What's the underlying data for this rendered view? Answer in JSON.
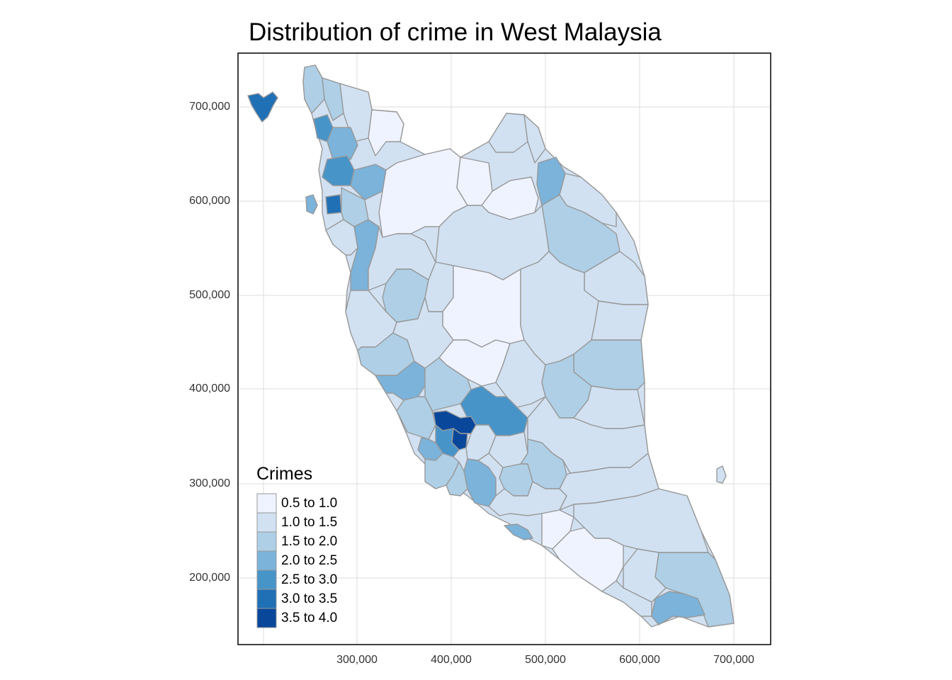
{
  "title": "Distribution of crime in West Malaysia",
  "axes": {
    "y_ticks": [
      "700,000",
      "600,000",
      "500,000",
      "400,000",
      "300,000",
      "200,000"
    ],
    "x_ticks": [
      "300,000",
      "400,000",
      "500,000",
      "600,000",
      "700,000"
    ]
  },
  "legend": {
    "title": "Crimes",
    "items": [
      {
        "label": "0.5 to 1.0",
        "color": "#eff3ff"
      },
      {
        "label": "1.0 to 1.5",
        "color": "#d1e1f2"
      },
      {
        "label": "1.5 to 2.0",
        "color": "#aecfe6"
      },
      {
        "label": "2.0 to 2.5",
        "color": "#7bb3da"
      },
      {
        "label": "2.5 to 3.0",
        "color": "#4794c9"
      },
      {
        "label": "3.0 to 3.5",
        "color": "#2070b6"
      },
      {
        "label": "3.5 to 4.0",
        "color": "#08479a"
      }
    ]
  },
  "colors": {
    "border": "#999999",
    "grid": "#dddddd",
    "panel_border": "#000000"
  }
}
